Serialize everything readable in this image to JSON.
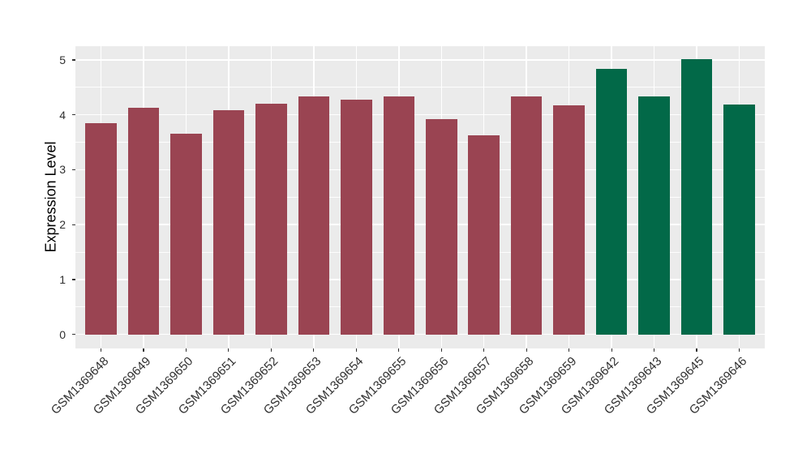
{
  "figure": {
    "background_color": "#FFFFFF"
  },
  "chart_data": {
    "type": "bar",
    "title": "",
    "xlabel": "",
    "ylabel": "Expression Level",
    "ylim": [
      0,
      5.3
    ],
    "yticks": [
      "0",
      "1",
      "2",
      "3",
      "4",
      "5"
    ],
    "grid": "white major and minor horizontal gridlines plus vertical gridlines at each bar, on gray panel",
    "legend": "none",
    "panel_background": "#EBEBEB",
    "gridline_color": "#FFFFFF",
    "axis_text_color": "#303030",
    "tick_mark_color": "#333333",
    "group_colors": {
      "red_group": "#9A4452",
      "green_group": "#026948"
    },
    "bars": [
      {
        "label": "GSM1369648",
        "value": 3.85,
        "color": "#9A4452"
      },
      {
        "label": "GSM1369649",
        "value": 4.13,
        "color": "#9A4452"
      },
      {
        "label": "GSM1369650",
        "value": 3.66,
        "color": "#9A4452"
      },
      {
        "label": "GSM1369651",
        "value": 4.09,
        "color": "#9A4452"
      },
      {
        "label": "GSM1369652",
        "value": 4.21,
        "color": "#9A4452"
      },
      {
        "label": "GSM1369653",
        "value": 4.33,
        "color": "#9A4452"
      },
      {
        "label": "GSM1369654",
        "value": 4.27,
        "color": "#9A4452"
      },
      {
        "label": "GSM1369655",
        "value": 4.34,
        "color": "#9A4452"
      },
      {
        "label": "GSM1369656",
        "value": 3.92,
        "color": "#9A4452"
      },
      {
        "label": "GSM1369657",
        "value": 3.62,
        "color": "#9A4452"
      },
      {
        "label": "GSM1369658",
        "value": 4.34,
        "color": "#9A4452"
      },
      {
        "label": "GSM1369659",
        "value": 4.18,
        "color": "#9A4452"
      },
      {
        "label": "GSM1369642",
        "value": 4.84,
        "color": "#026948"
      },
      {
        "label": "GSM1369643",
        "value": 4.33,
        "color": "#026948"
      },
      {
        "label": "GSM1369645",
        "value": 5.02,
        "color": "#026948"
      },
      {
        "label": "GSM1369646",
        "value": 4.19,
        "color": "#026948"
      }
    ]
  }
}
